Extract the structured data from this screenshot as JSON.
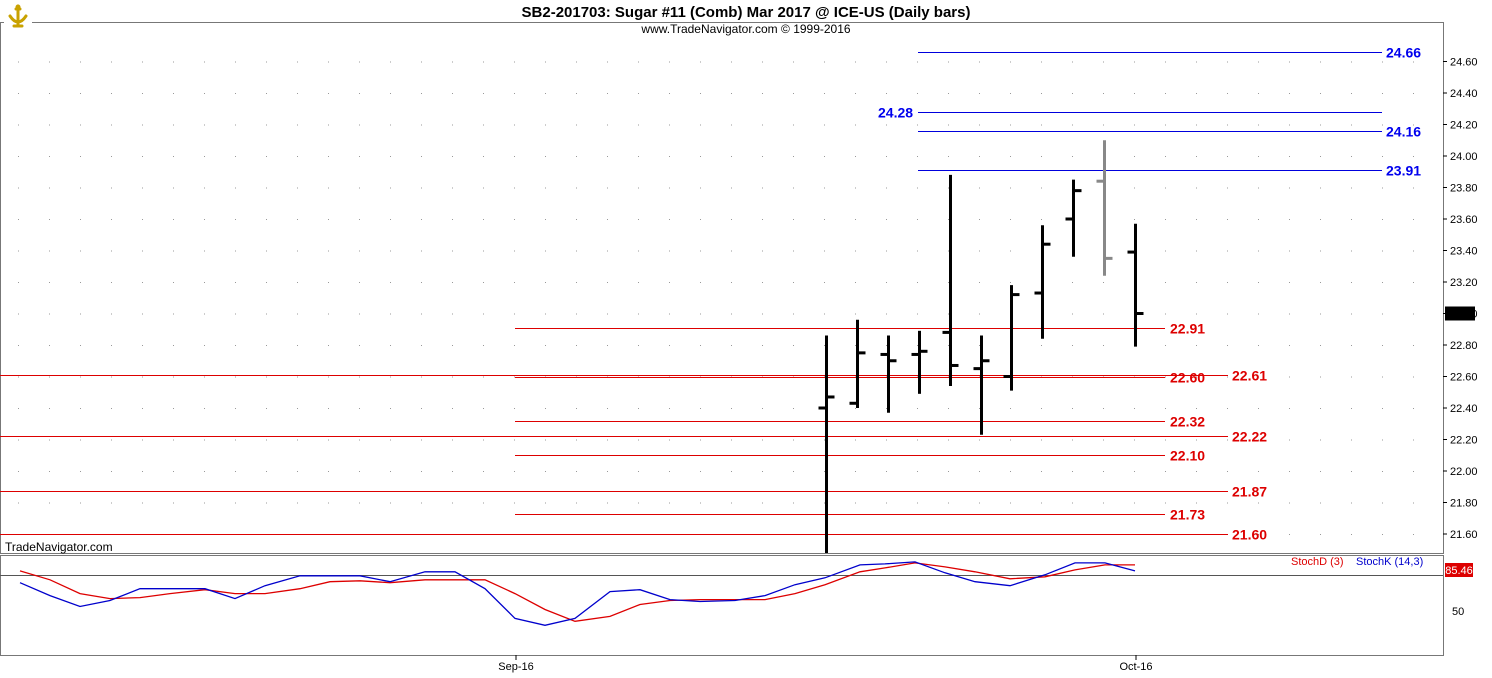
{
  "header": {
    "title": "SB2-201703:  Sugar #11 (Comb) Mar 2017 @ ICE-US  (Daily bars)",
    "copyright": "www.TradeNavigator.com © 1999-2016",
    "watermark": "TradeNavigator.com"
  },
  "colors": {
    "blue_level": "#0000dd",
    "red_level": "#dd0000",
    "bar": "#000000",
    "last_bar": "#888888",
    "stoch_d": "#dd0000",
    "stoch_k": "#0000cc"
  },
  "chart_data": {
    "type": "ohlc",
    "ylim": [
      21.5,
      24.75
    ],
    "y_ticks": [
      "21.60",
      "21.80",
      "22.00",
      "22.20",
      "22.40",
      "22.60",
      "22.80",
      "23.00",
      "23.20",
      "23.40",
      "23.60",
      "23.80",
      "24.00",
      "24.20",
      "24.40",
      "24.60"
    ],
    "x_labels": [
      "Sep-16",
      "Oct-16"
    ],
    "last_price": "23.00",
    "bars": [
      {
        "o": 22.4,
        "h": 22.86,
        "l": 21.4,
        "c": 22.47
      },
      {
        "o": 22.43,
        "h": 22.96,
        "l": 22.4,
        "c": 22.75
      },
      {
        "o": 22.74,
        "h": 22.86,
        "l": 22.37,
        "c": 22.7
      },
      {
        "o": 22.74,
        "h": 22.89,
        "l": 22.49,
        "c": 22.76
      },
      {
        "o": 22.88,
        "h": 23.88,
        "l": 22.54,
        "c": 22.67
      },
      {
        "o": 22.65,
        "h": 22.86,
        "l": 22.23,
        "c": 22.7
      },
      {
        "o": 22.6,
        "h": 23.18,
        "l": 22.51,
        "c": 23.12
      },
      {
        "o": 23.13,
        "h": 23.56,
        "l": 22.84,
        "c": 23.44
      },
      {
        "o": 23.6,
        "h": 23.85,
        "l": 23.36,
        "c": 23.78
      },
      {
        "o": 23.84,
        "h": 24.1,
        "l": 23.24,
        "c": 23.35,
        "current": true
      },
      {
        "o": 23.39,
        "h": 23.57,
        "l": 22.79,
        "c": 23.0
      }
    ],
    "levels": [
      {
        "label": "24.66",
        "value": 24.66,
        "color": "blue",
        "x0": 918,
        "x1": 1382,
        "label_x": 1386
      },
      {
        "label": "24.28",
        "value": 24.28,
        "color": "blue",
        "x0": 918,
        "x1": 1382,
        "label_x": 878
      },
      {
        "label": "24.16",
        "value": 24.16,
        "color": "blue",
        "x0": 918,
        "x1": 1382,
        "label_x": 1386
      },
      {
        "label": "23.91",
        "value": 23.91,
        "color": "blue",
        "x0": 918,
        "x1": 1382,
        "label_x": 1386
      },
      {
        "label": "22.91",
        "value": 22.91,
        "color": "red",
        "x0": 515,
        "x1": 1165,
        "label_x": 1170
      },
      {
        "label": "22.61",
        "value": 22.61,
        "color": "red",
        "x0": 0,
        "x1": 1228,
        "label_x": 1232
      },
      {
        "label": "22.60",
        "value": 22.6,
        "color": "red",
        "x0": 515,
        "x1": 1165,
        "label_x": 1170
      },
      {
        "label": "22.32",
        "value": 22.32,
        "color": "red",
        "x0": 515,
        "x1": 1165,
        "label_x": 1170
      },
      {
        "label": "22.22",
        "value": 22.22,
        "color": "red",
        "x0": 0,
        "x1": 1228,
        "label_x": 1232
      },
      {
        "label": "22.10",
        "value": 22.1,
        "color": "red",
        "x0": 515,
        "x1": 1165,
        "label_x": 1170
      },
      {
        "label": "21.87",
        "value": 21.87,
        "color": "red",
        "x0": 0,
        "x1": 1228,
        "label_x": 1232
      },
      {
        "label": "21.73",
        "value": 21.73,
        "color": "red",
        "x0": 515,
        "x1": 1165,
        "label_x": 1170
      },
      {
        "label": "21.60",
        "value": 21.6,
        "color": "red",
        "x0": 0,
        "x1": 1228,
        "label_x": 1232
      }
    ],
    "stochastic": {
      "d_label": "StochD (3)",
      "k_label": "StochK (14,3)",
      "last_value": "85.46",
      "y_tick": "50",
      "ylim": [
        0,
        100
      ],
      "x": [
        20,
        50,
        80,
        110,
        140,
        170,
        205,
        235,
        265,
        300,
        330,
        360,
        390,
        425,
        455,
        485,
        515,
        545,
        575,
        610,
        640,
        670,
        700,
        735,
        765,
        795,
        825,
        860,
        885,
        915,
        945,
        975,
        1010,
        1045,
        1075,
        1105,
        1135
      ],
      "d": [
        85,
        76,
        62,
        57,
        58,
        62,
        66,
        62,
        62,
        67,
        74,
        75,
        73,
        76,
        76,
        76,
        62,
        46,
        34,
        39,
        51,
        55,
        56,
        56,
        56,
        62,
        71,
        84,
        88,
        93,
        89,
        84,
        77,
        79,
        86,
        91,
        91
      ],
      "k": [
        73,
        60,
        49,
        55,
        67,
        67,
        67,
        57,
        70,
        80,
        80,
        80,
        74,
        84,
        84,
        67,
        37,
        30,
        37,
        64,
        66,
        56,
        54,
        55,
        60,
        71,
        78,
        91,
        92,
        94,
        83,
        74,
        70,
        81,
        93,
        93,
        85
      ]
    }
  }
}
